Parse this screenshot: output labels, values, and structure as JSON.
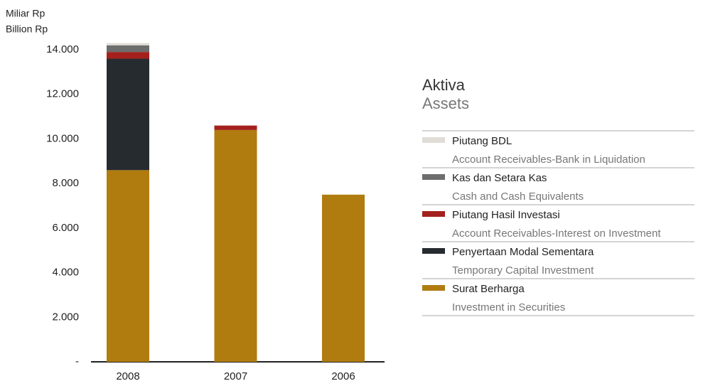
{
  "chart_data": {
    "type": "stacked_bar",
    "title": "Aktiva",
    "subtitle": "Assets",
    "ylabel": "Miliar Rp",
    "ylabel_en": "Billion Rp",
    "categories": [
      "2008",
      "2007",
      "2006"
    ],
    "series": [
      {
        "name": "Surat Berharga",
        "name_en": "Investment in Securities",
        "color": "#b07c10",
        "values": [
          8600,
          10400,
          7500
        ]
      },
      {
        "name": "Penyertaan Modal Sementara",
        "name_en": "Temporary Capital Investment",
        "color": "#262b30",
        "values": [
          5000,
          null,
          null
        ]
      },
      {
        "name": "Piutang Hasil Investasi",
        "name_en": "Account Receivables-Interest on Investment",
        "color": "#a4201c",
        "values": [
          300,
          200,
          null
        ]
      },
      {
        "name": "Kas dan Setara Kas",
        "name_en": "Cash and Cash Equivalents",
        "color": "#6d6d6d",
        "values": [
          300,
          null,
          null
        ]
      },
      {
        "name": "Piutang BDL",
        "name_en": "Account Receivables-Bank in Liquidation",
        "color": "#e0ddd6",
        "values": [
          100,
          null,
          null
        ]
      }
    ],
    "ylim": [
      0,
      14000
    ],
    "yticks": [
      {
        "value": 0,
        "label": "-"
      },
      {
        "value": 2000,
        "label": "2.000"
      },
      {
        "value": 4000,
        "label": "4.000"
      },
      {
        "value": 6000,
        "label": "6.000"
      },
      {
        "value": 8000,
        "label": "8.000"
      },
      {
        "value": 10000,
        "label": "10.000"
      },
      {
        "value": 12000,
        "label": "12.000"
      },
      {
        "value": 14000,
        "label": "14.000"
      }
    ],
    "grid": false
  }
}
